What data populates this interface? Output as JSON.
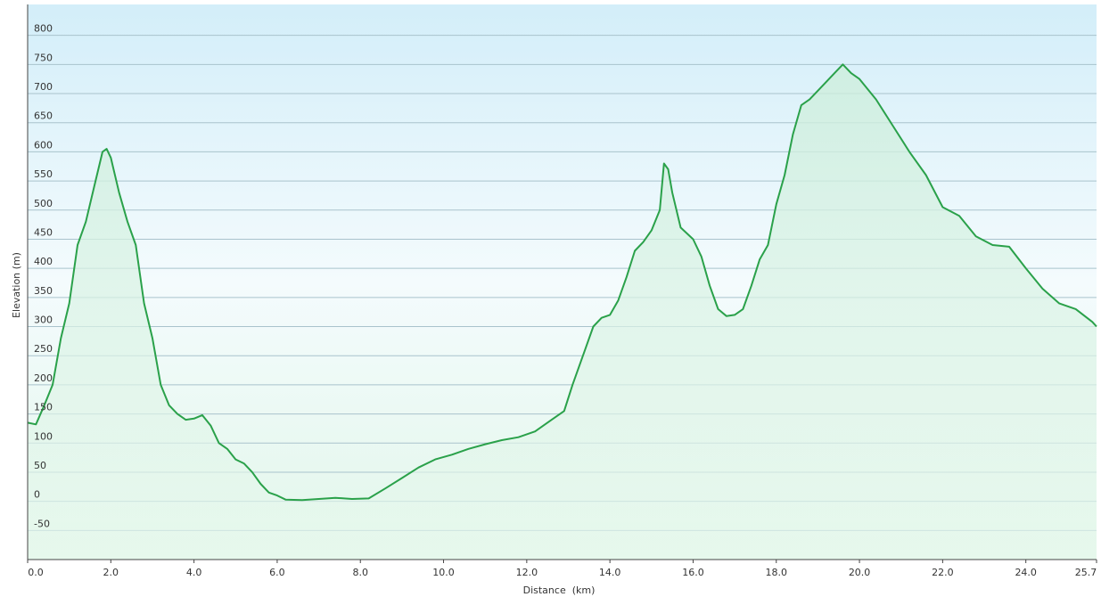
{
  "chart_data": {
    "type": "area",
    "x_label": "Distance  (km)",
    "y_label": "Elevation (m)",
    "xlim": [
      0,
      25.7
    ],
    "ylim": [
      -100,
      853
    ],
    "xticks": [
      {
        "value": 0,
        "label": "0.0"
      },
      {
        "value": 2,
        "label": "2.0"
      },
      {
        "value": 4,
        "label": "4.0"
      },
      {
        "value": 6,
        "label": "6.0"
      },
      {
        "value": 8,
        "label": "8.0"
      },
      {
        "value": 10,
        "label": "10.0"
      },
      {
        "value": 12,
        "label": "12.0"
      },
      {
        "value": 14,
        "label": "14.0"
      },
      {
        "value": 16,
        "label": "16.0"
      },
      {
        "value": 18,
        "label": "18.0"
      },
      {
        "value": 20,
        "label": "20.0"
      },
      {
        "value": 22,
        "label": "22.0"
      },
      {
        "value": 24,
        "label": "24.0"
      },
      25.7
    ],
    "yticks": [
      -50,
      0,
      50,
      100,
      150,
      200,
      250,
      300,
      350,
      400,
      450,
      500,
      550,
      600,
      650,
      700,
      750,
      800
    ],
    "grid": true,
    "series": [
      {
        "name": "Elevation",
        "color": "#2aa14a",
        "x": [
          0,
          0.2,
          0.4,
          0.6,
          0.8,
          1.0,
          1.2,
          1.4,
          1.6,
          1.8,
          1.9,
          2.0,
          2.2,
          2.4,
          2.6,
          2.8,
          3.0,
          3.2,
          3.4,
          3.6,
          3.8,
          4.0,
          4.2,
          4.4,
          4.6,
          4.8,
          5.0,
          5.2,
          5.4,
          5.6,
          5.8,
          6.0,
          6.2,
          6.6,
          7.0,
          7.4,
          7.8,
          8.2,
          8.6,
          9.0,
          9.4,
          9.8,
          10.2,
          10.6,
          11.0,
          11.4,
          11.8,
          12.2,
          12.6,
          12.9,
          13.1,
          13.4,
          13.6,
          13.8,
          14.0,
          14.2,
          14.4,
          14.6,
          14.8,
          15.0,
          15.2,
          15.3,
          15.4,
          15.5,
          15.7,
          16.0,
          16.2,
          16.4,
          16.6,
          16.8,
          17.0,
          17.2,
          17.4,
          17.6,
          17.8,
          18.0,
          18.2,
          18.4,
          18.6,
          18.8,
          19.0,
          19.4,
          19.6,
          19.8,
          20.0,
          20.4,
          20.8,
          21.2,
          21.6,
          22.0,
          22.4,
          22.8,
          23.2,
          23.6,
          24.0,
          24.4,
          24.8,
          25.2,
          25.6,
          25.7
        ],
        "values": [
          135,
          132,
          165,
          200,
          280,
          340,
          440,
          480,
          540,
          600,
          605,
          590,
          530,
          480,
          440,
          340,
          280,
          200,
          165,
          150,
          140,
          142,
          148,
          130,
          100,
          90,
          72,
          65,
          50,
          30,
          15,
          10,
          3,
          2,
          4,
          6,
          4,
          5,
          22,
          40,
          58,
          72,
          80,
          90,
          98,
          105,
          110,
          120,
          140,
          155,
          200,
          260,
          300,
          315,
          320,
          345,
          385,
          430,
          445,
          465,
          500,
          580,
          570,
          530,
          470,
          450,
          420,
          370,
          330,
          318,
          320,
          330,
          370,
          415,
          440,
          510,
          560,
          630,
          680,
          690,
          705,
          735,
          750,
          735,
          725,
          690,
          645,
          600,
          560,
          505,
          490,
          455,
          440,
          437,
          400,
          365,
          340,
          330,
          308,
          300
        ]
      }
    ]
  }
}
